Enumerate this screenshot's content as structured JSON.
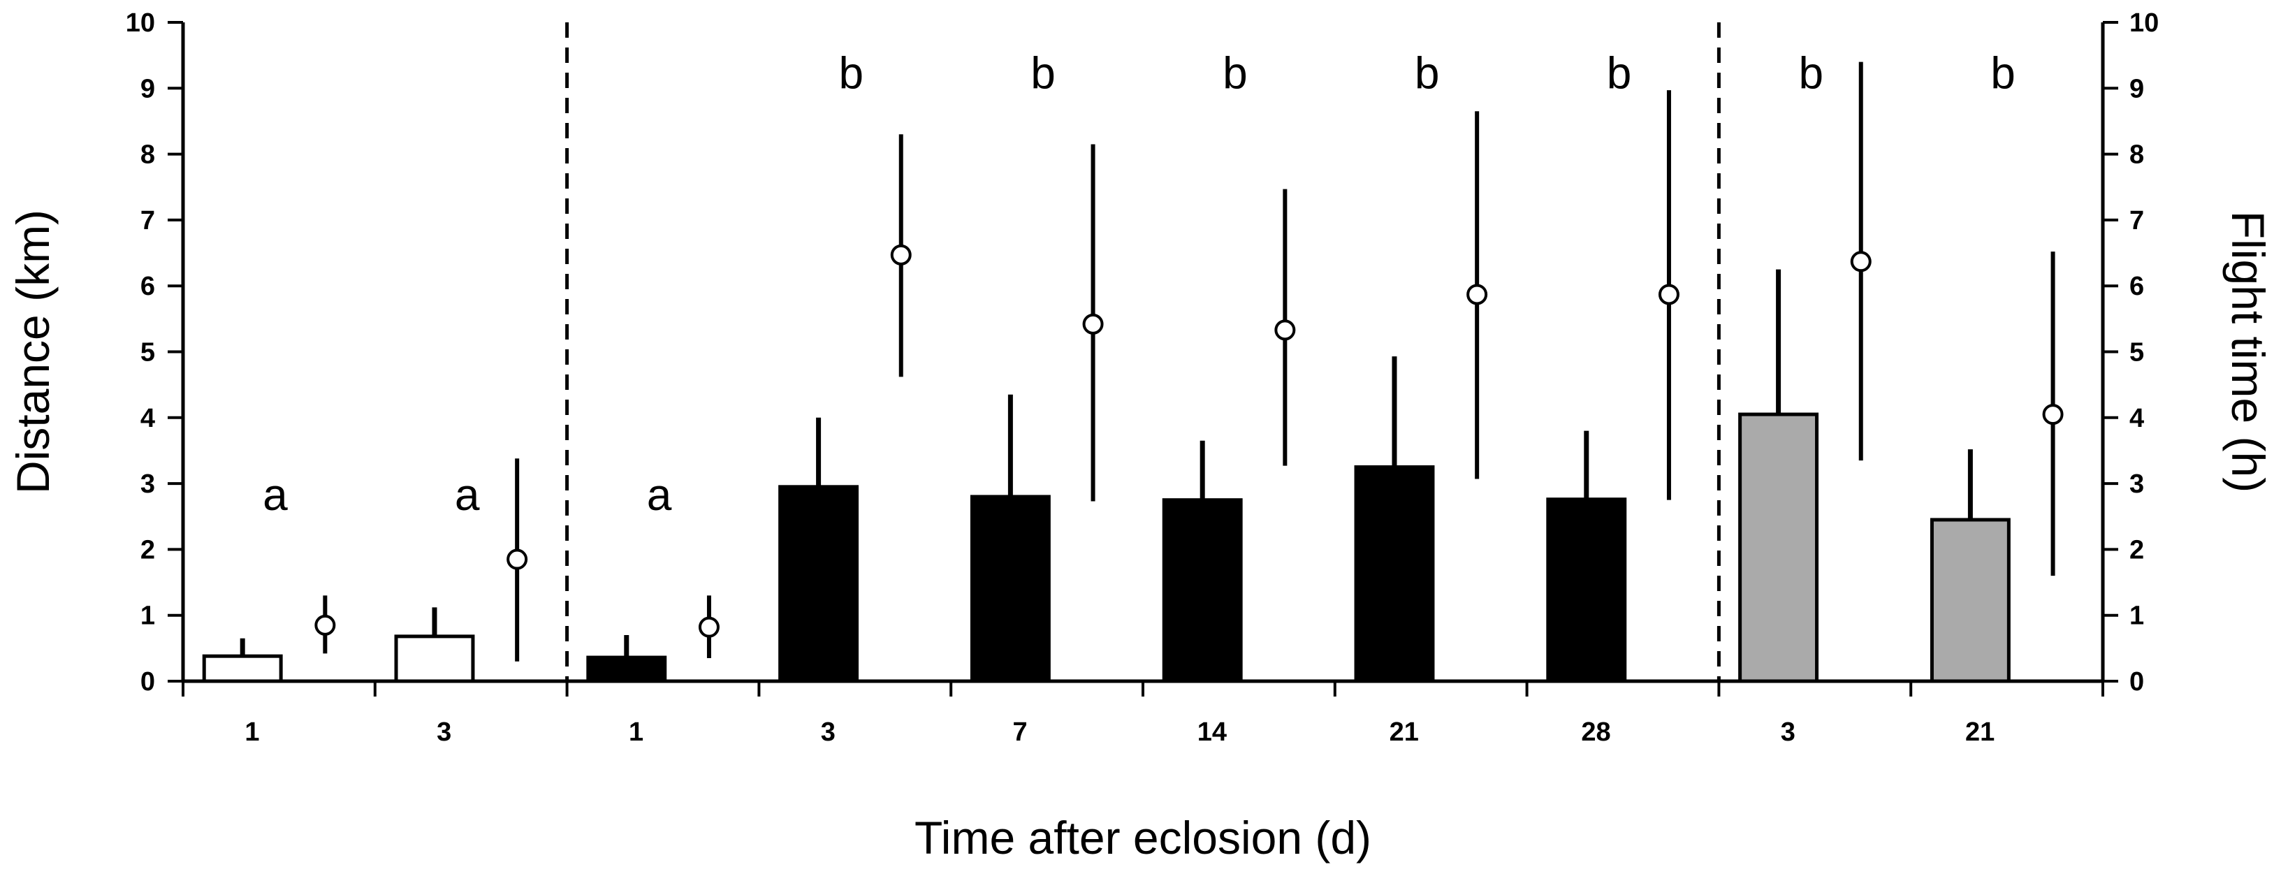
{
  "chart_data": {
    "type": "bar",
    "xlabel": "Time after eclosion (d)",
    "ylabel": "Distance (km)",
    "y2label": "Flight time (h)",
    "ylim": [
      0,
      10
    ],
    "y2lim": [
      0,
      10
    ],
    "yticks": [
      "0",
      "1",
      "2",
      "3",
      "4",
      "5",
      "6",
      "7",
      "8",
      "9",
      "10"
    ],
    "y2ticks": [
      "0",
      "1",
      "2",
      "3",
      "4",
      "5",
      "6",
      "7",
      "8",
      "9",
      "10"
    ],
    "grid": false,
    "group_colors": [
      "#ffffff",
      "#000000",
      "#aaaaaa"
    ],
    "point_color": "#ffffff",
    "group_separators": "dashed",
    "categories": [
      "1",
      "3",
      "1",
      "3",
      "7",
      "14",
      "21",
      "28",
      "3",
      "21"
    ],
    "group": [
      0,
      0,
      1,
      1,
      1,
      1,
      1,
      1,
      2,
      2
    ],
    "distance_km": [
      0.38,
      0.68,
      0.36,
      2.95,
      2.8,
      2.75,
      3.25,
      2.76,
      4.05,
      2.45
    ],
    "distance_error_upper": [
      0.65,
      1.12,
      0.7,
      4.0,
      4.35,
      3.65,
      4.93,
      3.8,
      6.25,
      3.52
    ],
    "flight_time_h": [
      0.85,
      1.85,
      0.82,
      6.47,
      5.42,
      5.33,
      5.87,
      5.87,
      6.37,
      4.05
    ],
    "flight_time_low": [
      0.42,
      0.3,
      0.35,
      4.62,
      2.73,
      3.27,
      3.07,
      2.75,
      3.35,
      1.6
    ],
    "flight_time_high": [
      1.3,
      3.38,
      1.3,
      8.3,
      8.15,
      7.47,
      8.65,
      8.97,
      9.4,
      6.52
    ],
    "significance_letters": [
      "a",
      "a",
      "a",
      "b",
      "b",
      "b",
      "b",
      "b",
      "b",
      "b"
    ],
    "significance_y": [
      2.6,
      2.6,
      2.6,
      9.0,
      9.0,
      9.0,
      9.0,
      9.0,
      9.0,
      9.0
    ]
  }
}
